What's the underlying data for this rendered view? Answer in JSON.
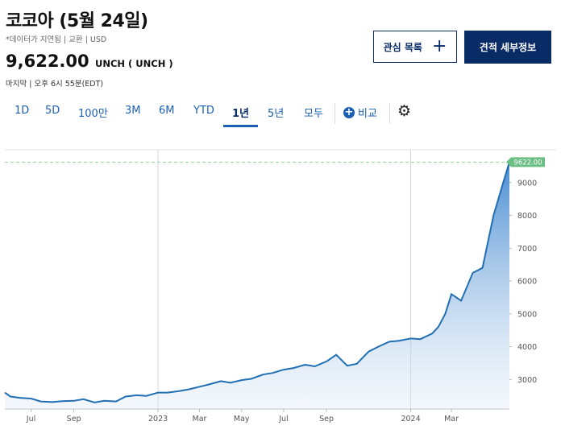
{
  "header": {
    "title": "코코아 (5월 24일)",
    "subinfo": "*데이터가 지연됨 | 교환 | USD",
    "price": "9,622.00",
    "change": "UNCH ( UNCH )",
    "last_update": "마지막 | 오후 6시 55분(EDT)"
  },
  "buttons": {
    "watchlist_label": "관심 목록",
    "details_label": "견적 세부정보"
  },
  "tabs": {
    "items": [
      "1D",
      "5D",
      "100만",
      "3M",
      "6M",
      "YTD",
      "1년",
      "5년",
      "모두"
    ],
    "active": "1년",
    "compare_label": "비교"
  },
  "icons": [
    "plus-icon",
    "plus-circle-icon",
    "gear-icon"
  ],
  "colors": {
    "line": "#1f6fb2",
    "navy": "#0a2c66",
    "tag": "#6cbf84",
    "dashed": "#9ccf9f"
  },
  "chart_data": {
    "type": "area",
    "xlabel": "",
    "ylabel": "",
    "ylim": [
      2100,
      10000
    ],
    "y_ticks": [
      3000,
      4000,
      5000,
      6000,
      7000,
      8000,
      9000
    ],
    "y_tick_labels": [
      "3000",
      "4000",
      "5000",
      "6000",
      "7000",
      "8000",
      "9000"
    ],
    "x_ticks": [
      {
        "date": "2023-07-01",
        "label": "Jul"
      },
      {
        "date": "2023-09-01",
        "label": "Sep"
      },
      {
        "date": "2024-01-01",
        "label": "2023",
        "year": true
      },
      {
        "date": "2024-03-01",
        "label": "Mar"
      },
      {
        "date": "2024-05-01",
        "label": "May"
      },
      {
        "date": "2024-07-01",
        "label": "Jul"
      },
      {
        "date": "2024-09-01",
        "label": "Sep"
      },
      {
        "date": "2025-01-01",
        "label": "2024",
        "year": true
      },
      {
        "date": "2025-03-01",
        "label": "Mar"
      }
    ],
    "last_value_label": "9622.00",
    "last_value": 9622,
    "series": [
      {
        "x": [
          "2023-05-24",
          "2023-06-01",
          "2023-06-15",
          "2023-07-01",
          "2023-07-15",
          "2023-08-01",
          "2023-08-15",
          "2023-09-01",
          "2023-09-15",
          "2023-10-01",
          "2023-10-15",
          "2023-11-01",
          "2023-11-15",
          "2023-12-01",
          "2023-12-15",
          "2024-01-01",
          "2024-01-15",
          "2024-02-01",
          "2024-02-15",
          "2024-03-01",
          "2024-03-15",
          "2024-04-01",
          "2024-04-15",
          "2024-05-01",
          "2024-05-15",
          "2024-06-01",
          "2024-06-15",
          "2024-07-01",
          "2024-07-15",
          "2024-08-01",
          "2024-08-15",
          "2024-09-01",
          "2024-09-15",
          "2024-10-01",
          "2024-10-15",
          "2024-11-01",
          "2024-11-15",
          "2024-12-01",
          "2024-12-15",
          "2025-01-01",
          "2025-01-15",
          "2025-02-01",
          "2025-02-10",
          "2025-02-20",
          "2025-03-01",
          "2025-03-15",
          "2025-04-01",
          "2025-04-15",
          "2025-05-01",
          "2025-05-15",
          "2025-05-24"
        ],
        "values": [
          2600,
          2480,
          2440,
          2420,
          2330,
          2310,
          2340,
          2350,
          2400,
          2300,
          2350,
          2330,
          2480,
          2520,
          2500,
          2600,
          2600,
          2650,
          2700,
          2780,
          2850,
          2950,
          2900,
          2980,
          3020,
          3150,
          3200,
          3300,
          3350,
          3450,
          3400,
          3550,
          3750,
          3420,
          3480,
          3850,
          4000,
          4150,
          4180,
          4250,
          4230,
          4400,
          4600,
          5000,
          5600,
          5400,
          6250,
          6400,
          8000,
          9000,
          9622
        ]
      }
    ]
  }
}
